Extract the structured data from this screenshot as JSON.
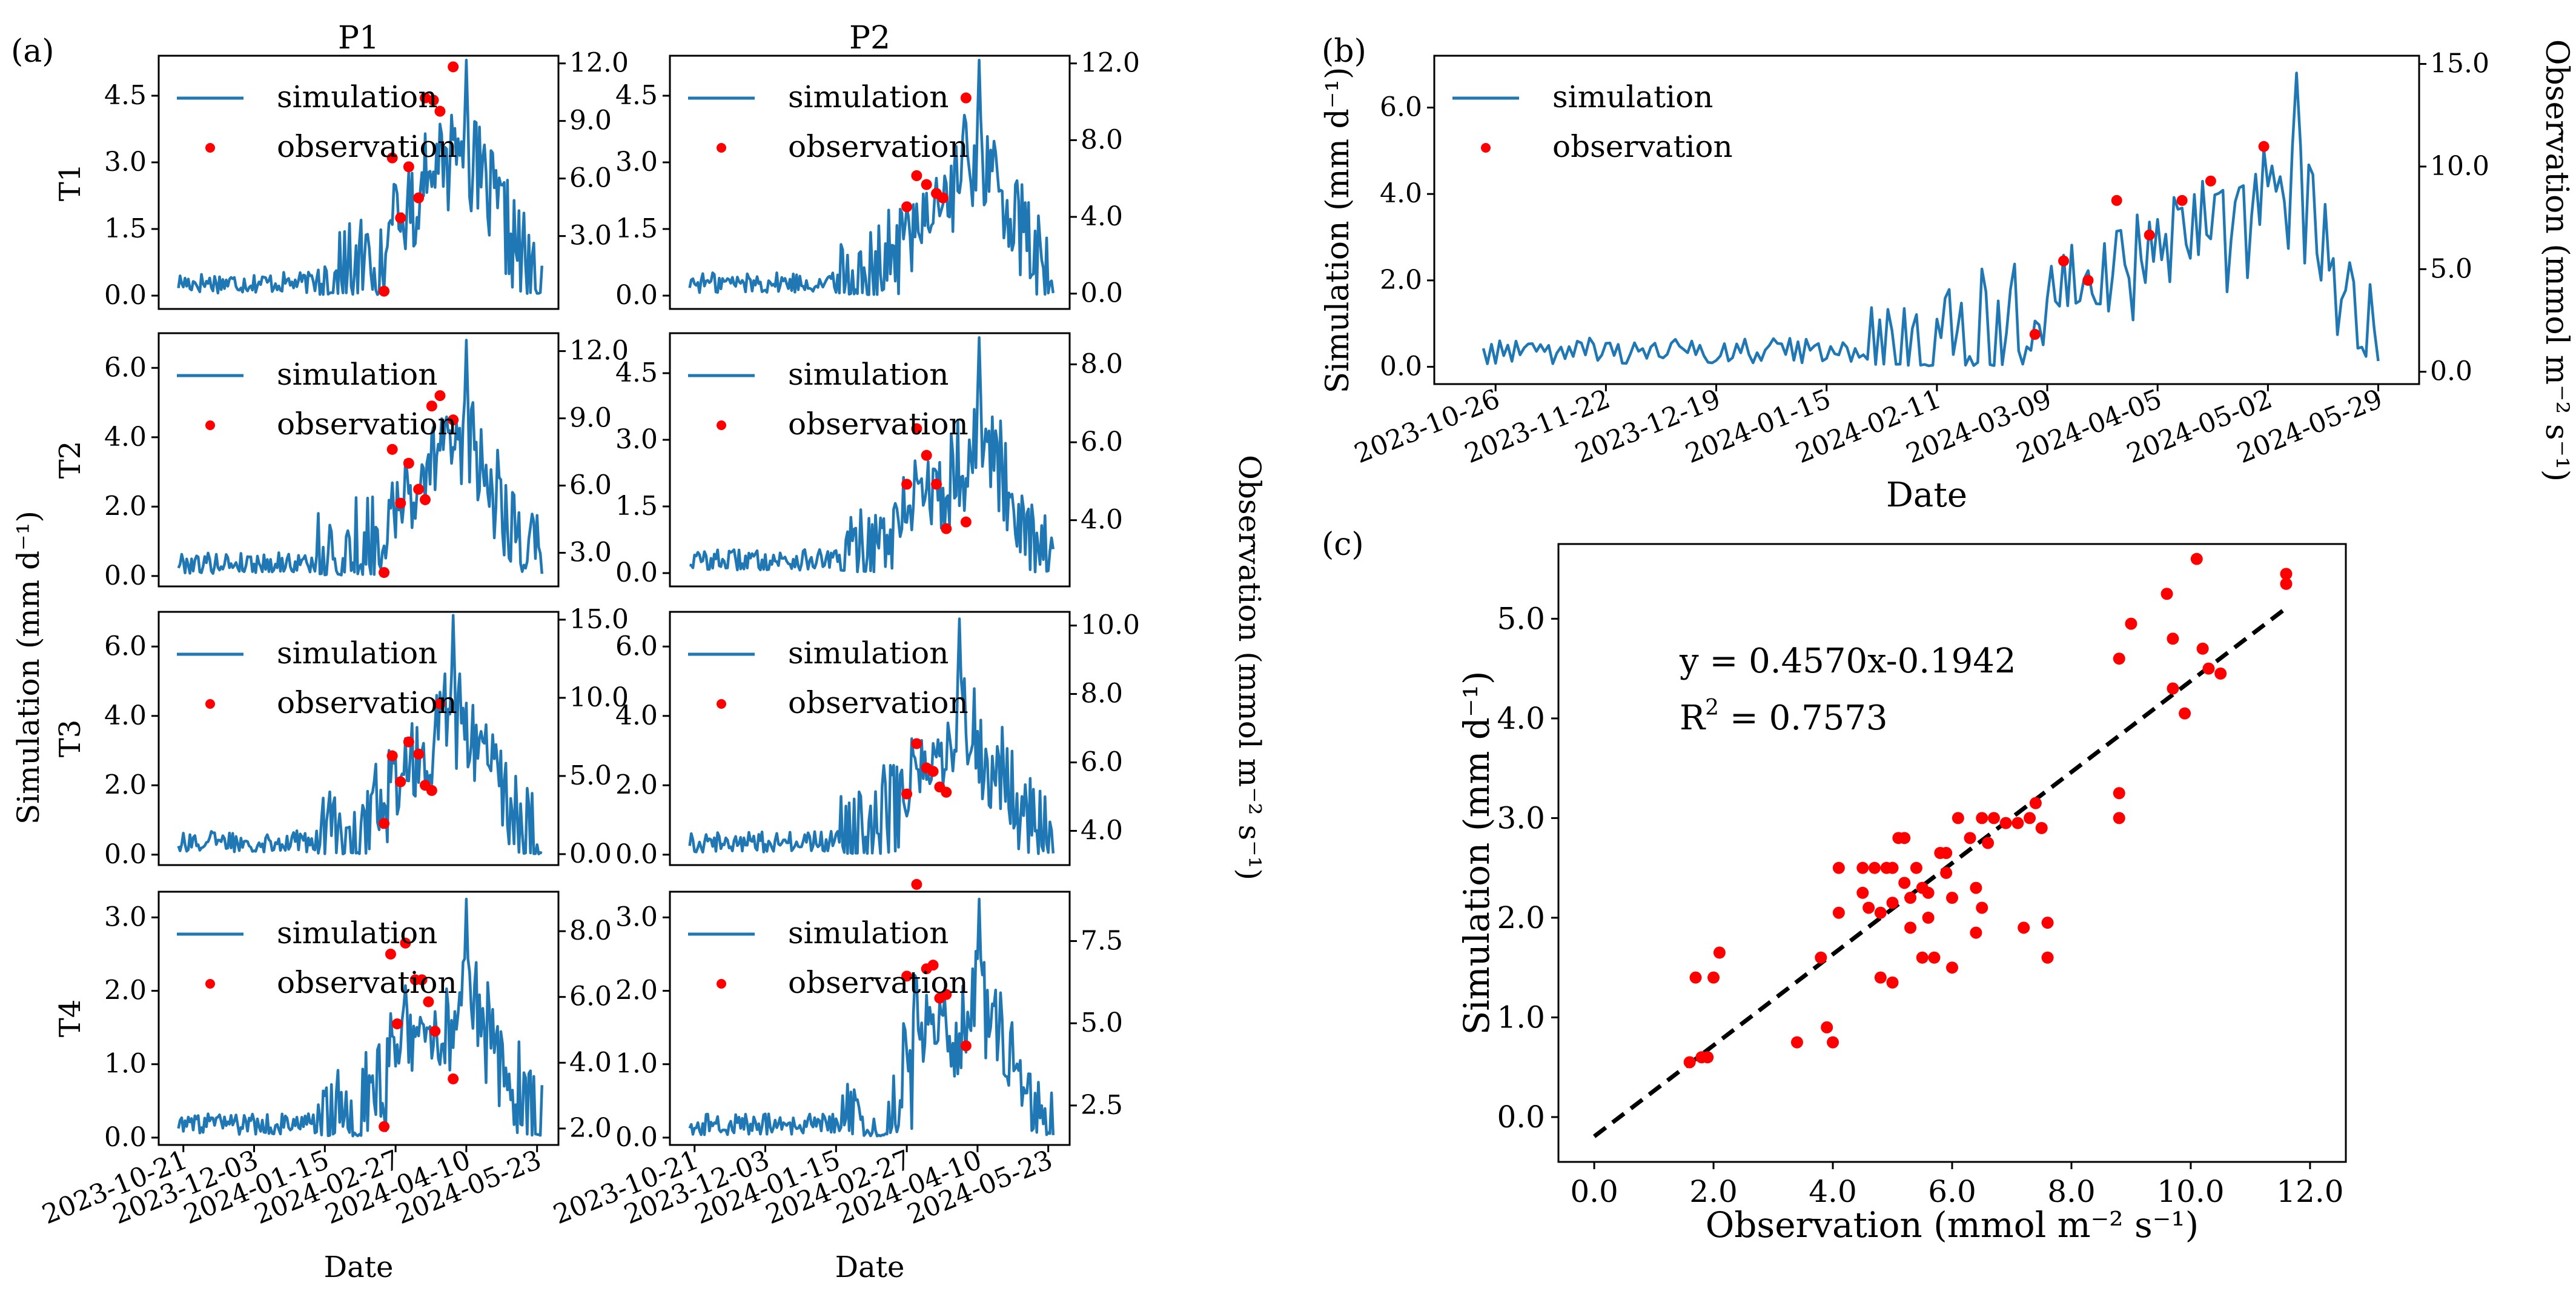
{
  "colors": {
    "simulation": "#1f77b4",
    "observation": "#ff0000",
    "fit_line": "#000000"
  },
  "chart_data": [
    {
      "id": "a",
      "type": "line",
      "panel_label": "(a)",
      "column_titles": [
        "P1",
        "P2"
      ],
      "row_labels": [
        "T1",
        "T2",
        "T3",
        "T4"
      ],
      "xlabel": "Date",
      "ylabel_left": "Simulation (mm d⁻¹)",
      "ylabel_right": "Observation (mmol m⁻² s⁻¹)",
      "x_ticks": [
        "2023-10-21",
        "2023-12-03",
        "2024-01-15",
        "2024-02-27",
        "2024-04-10",
        "2024-05-23"
      ],
      "x_range": [
        "2023-10-06",
        "2024-06-05"
      ],
      "legend": [
        "simulation",
        "observation"
      ],
      "subplots": [
        {
          "row": "T1",
          "col": "P1",
          "y_left_ticks": [
            "0.0",
            "1.5",
            "3.0",
            "4.5"
          ],
          "y_left_range": [
            -0.3,
            5.4
          ],
          "y_right_ticks": [
            "3.0",
            "6.0",
            "9.0",
            "12.0"
          ],
          "y_right_range": [
            -0.8,
            12.4
          ],
          "sim_peak": 5.3,
          "observation": [
            [
              "2024-02-20",
              0.1
            ],
            [
              "2024-02-25",
              3.1
            ],
            [
              "2024-03-01",
              1.75
            ],
            [
              "2024-03-06",
              2.9
            ],
            [
              "2024-03-12",
              2.2
            ],
            [
              "2024-03-16",
              4.45
            ],
            [
              "2024-03-21",
              4.4
            ],
            [
              "2024-03-25",
              4.15
            ],
            [
              "2024-04-02",
              5.15
            ]
          ]
        },
        {
          "row": "T1",
          "col": "P2",
          "y_left_ticks": [
            "0.0",
            "1.5",
            "3.0",
            "4.5"
          ],
          "y_left_range": [
            -0.3,
            5.4
          ],
          "y_right_ticks": [
            "0.0",
            "4.0",
            "8.0",
            "12.0"
          ],
          "y_right_range": [
            -0.8,
            12.4
          ],
          "sim_peak": 5.3,
          "observation": [
            [
              "2024-02-27",
              2.0
            ],
            [
              "2024-03-04",
              2.7
            ],
            [
              "2024-03-10",
              2.5
            ],
            [
              "2024-03-16",
              2.3
            ],
            [
              "2024-03-20",
              2.2
            ],
            [
              "2024-04-03",
              4.45
            ]
          ]
        },
        {
          "row": "T2",
          "col": "P1",
          "y_left_ticks": [
            "0.0",
            "2.0",
            "4.0",
            "6.0"
          ],
          "y_left_range": [
            -0.3,
            7.0
          ],
          "y_right_ticks": [
            "3.0",
            "6.0",
            "9.0",
            "12.0"
          ],
          "y_right_range": [
            1.5,
            12.8
          ],
          "sim_peak": 6.8,
          "observation": [
            [
              "2024-02-20",
              0.1
            ],
            [
              "2024-02-25",
              3.65
            ],
            [
              "2024-03-01",
              2.1
            ],
            [
              "2024-03-06",
              3.25
            ],
            [
              "2024-03-12",
              2.5
            ],
            [
              "2024-03-16",
              2.2
            ],
            [
              "2024-03-20",
              4.9
            ],
            [
              "2024-03-25",
              5.2
            ],
            [
              "2024-04-02",
              4.5
            ]
          ]
        },
        {
          "row": "T2",
          "col": "P2",
          "y_left_ticks": [
            "0.0",
            "1.5",
            "3.0",
            "4.5"
          ],
          "y_left_range": [
            -0.3,
            5.4
          ],
          "y_right_ticks": [
            "4.0",
            "6.0",
            "8.0"
          ],
          "y_right_range": [
            2.3,
            8.8
          ],
          "sim_peak": 5.3,
          "observation": [
            [
              "2024-02-27",
              2.0
            ],
            [
              "2024-03-04",
              3.25
            ],
            [
              "2024-03-10",
              2.65
            ],
            [
              "2024-03-16",
              2.0
            ],
            [
              "2024-03-22",
              1.0
            ],
            [
              "2024-04-03",
              1.15
            ]
          ]
        },
        {
          "row": "T3",
          "col": "P1",
          "y_left_ticks": [
            "0.0",
            "2.0",
            "4.0",
            "6.0"
          ],
          "y_left_range": [
            -0.3,
            7.0
          ],
          "y_right_ticks": [
            "0.0",
            "5.0",
            "10.0",
            "15.0"
          ],
          "y_right_range": [
            -0.7,
            15.5
          ],
          "sim_peak": 6.9,
          "observation": [
            [
              "2024-02-20",
              0.9
            ],
            [
              "2024-02-25",
              2.85
            ],
            [
              "2024-03-01",
              2.1
            ],
            [
              "2024-03-06",
              3.25
            ],
            [
              "2024-03-12",
              2.9
            ],
            [
              "2024-03-16",
              2.0
            ],
            [
              "2024-03-20",
              1.85
            ],
            [
              "2024-03-25",
              4.35
            ]
          ]
        },
        {
          "row": "T3",
          "col": "P2",
          "y_left_ticks": [
            "0.0",
            "2.0",
            "4.0",
            "6.0"
          ],
          "y_left_range": [
            -0.3,
            7.0
          ],
          "y_right_ticks": [
            "4.0",
            "6.0",
            "8.0",
            "10.0"
          ],
          "y_right_range": [
            3.0,
            10.4
          ],
          "sim_peak": 6.8,
          "observation": [
            [
              "2024-02-27",
              1.75
            ],
            [
              "2024-03-04",
              3.2
            ],
            [
              "2024-03-10",
              2.5
            ],
            [
              "2024-03-14",
              2.4
            ],
            [
              "2024-03-18",
              1.95
            ],
            [
              "2024-03-22",
              1.8
            ]
          ]
        },
        {
          "row": "T4",
          "col": "P1",
          "y_left_ticks": [
            "0.0",
            "1.0",
            "2.0",
            "3.0"
          ],
          "y_left_range": [
            -0.1,
            3.35
          ],
          "y_right_ticks": [
            "2.0",
            "4.0",
            "6.0",
            "8.0"
          ],
          "y_right_range": [
            1.5,
            9.2
          ],
          "sim_peak": 3.25,
          "observation": [
            [
              "2024-02-20",
              0.15
            ],
            [
              "2024-02-24",
              2.5
            ],
            [
              "2024-02-28",
              1.55
            ],
            [
              "2024-03-04",
              2.65
            ],
            [
              "2024-03-10",
              2.15
            ],
            [
              "2024-03-14",
              2.15
            ],
            [
              "2024-03-18",
              1.85
            ],
            [
              "2024-03-22",
              1.45
            ],
            [
              "2024-04-02",
              0.8
            ]
          ]
        },
        {
          "row": "T4",
          "col": "P2",
          "y_left_ticks": [
            "0.0",
            "1.0",
            "2.0",
            "3.0"
          ],
          "y_left_range": [
            -0.1,
            3.35
          ],
          "y_right_ticks": [
            "2.5",
            "5.0",
            "7.5"
          ],
          "y_right_range": [
            1.3,
            9.0
          ],
          "sim_peak": 3.25,
          "observation": [
            [
              "2024-02-27",
              2.2
            ],
            [
              "2024-03-04",
              3.45
            ],
            [
              "2024-03-10",
              2.3
            ],
            [
              "2024-03-14",
              2.35
            ],
            [
              "2024-03-18",
              1.9
            ],
            [
              "2024-03-22",
              1.95
            ],
            [
              "2024-04-03",
              1.25
            ]
          ]
        }
      ]
    },
    {
      "id": "b",
      "type": "line",
      "panel_label": "(b)",
      "xlabel": "Date",
      "ylabel_left": "Simulation (mm d⁻¹)",
      "ylabel_right": "Observation (mmol m⁻² s⁻¹)",
      "x_ticks": [
        "2023-10-26",
        "2023-11-22",
        "2023-12-19",
        "2024-01-15",
        "2024-02-11",
        "2024-03-09",
        "2024-04-05",
        "2024-05-02",
        "2024-05-29"
      ],
      "x_range": [
        "2023-10-11",
        "2024-06-08"
      ],
      "y_left_ticks": [
        "0.0",
        "2.0",
        "4.0",
        "6.0"
      ],
      "y_left_range": [
        -0.4,
        7.2
      ],
      "y_right_ticks": [
        "0.0",
        "5.0",
        "10.0",
        "15.0"
      ],
      "y_right_range": [
        -0.6,
        15.4
      ],
      "legend": [
        "simulation",
        "observation"
      ],
      "sim_peak": 6.8,
      "observation": [
        [
          "2024-03-06",
          0.75
        ],
        [
          "2024-03-13",
          2.45
        ],
        [
          "2024-03-19",
          2.0
        ],
        [
          "2024-03-26",
          3.85
        ],
        [
          "2024-04-03",
          3.05
        ],
        [
          "2024-04-11",
          3.85
        ],
        [
          "2024-04-18",
          4.3
        ],
        [
          "2024-05-01",
          5.1
        ]
      ]
    },
    {
      "id": "c",
      "type": "scatter",
      "panel_label": "(c)",
      "xlabel": "Observation (mmol m⁻² s⁻¹)",
      "ylabel": "Simulation (mm d⁻¹)",
      "x_ticks": [
        "0.0",
        "2.0",
        "4.0",
        "6.0",
        "8.0",
        "10.0",
        "12.0"
      ],
      "xlim": [
        -0.6,
        12.6
      ],
      "y_ticks": [
        "0.0",
        "1.0",
        "2.0",
        "3.0",
        "4.0",
        "5.0"
      ],
      "ylim": [
        -0.45,
        5.75
      ],
      "equation": "y = 0.4570x-0.1942",
      "r2_label": "R",
      "r2_exp": "2",
      "r2_value": "= 0.7573",
      "fit": {
        "slope": 0.457,
        "intercept": -0.1942,
        "x_range": [
          0.0,
          11.6
        ]
      },
      "points": [
        [
          1.6,
          0.55
        ],
        [
          1.8,
          0.6
        ],
        [
          1.9,
          0.6
        ],
        [
          1.7,
          1.4
        ],
        [
          2.0,
          1.4
        ],
        [
          2.1,
          1.65
        ],
        [
          3.4,
          0.75
        ],
        [
          3.8,
          1.6
        ],
        [
          3.9,
          0.9
        ],
        [
          4.0,
          0.75
        ],
        [
          4.1,
          2.05
        ],
        [
          4.1,
          2.5
        ],
        [
          4.5,
          2.25
        ],
        [
          4.5,
          2.5
        ],
        [
          4.6,
          2.1
        ],
        [
          4.7,
          2.5
        ],
        [
          4.8,
          1.4
        ],
        [
          4.8,
          2.05
        ],
        [
          4.9,
          2.5
        ],
        [
          5.0,
          1.35
        ],
        [
          5.0,
          2.5
        ],
        [
          5.0,
          2.15
        ],
        [
          5.1,
          2.8
        ],
        [
          5.2,
          2.35
        ],
        [
          5.2,
          2.8
        ],
        [
          5.3,
          2.2
        ],
        [
          5.3,
          1.9
        ],
        [
          5.4,
          2.5
        ],
        [
          5.5,
          2.3
        ],
        [
          5.5,
          1.6
        ],
        [
          5.6,
          2.25
        ],
        [
          5.6,
          2.0
        ],
        [
          5.7,
          1.6
        ],
        [
          5.8,
          2.65
        ],
        [
          5.9,
          2.65
        ],
        [
          5.9,
          2.45
        ],
        [
          6.0,
          1.5
        ],
        [
          6.0,
          2.2
        ],
        [
          6.1,
          3.0
        ],
        [
          6.3,
          2.8
        ],
        [
          6.4,
          2.3
        ],
        [
          6.4,
          1.85
        ],
        [
          6.5,
          2.1
        ],
        [
          6.5,
          3.0
        ],
        [
          6.6,
          2.75
        ],
        [
          6.7,
          3.0
        ],
        [
          6.9,
          2.95
        ],
        [
          7.1,
          2.95
        ],
        [
          7.2,
          1.9
        ],
        [
          7.3,
          3.0
        ],
        [
          7.4,
          3.15
        ],
        [
          7.5,
          2.9
        ],
        [
          7.6,
          1.95
        ],
        [
          7.6,
          1.6
        ],
        [
          8.8,
          3.25
        ],
        [
          8.8,
          4.6
        ],
        [
          8.8,
          3.0
        ],
        [
          9.0,
          4.95
        ],
        [
          9.6,
          5.25
        ],
        [
          9.7,
          4.3
        ],
        [
          9.7,
          4.8
        ],
        [
          9.9,
          4.05
        ],
        [
          10.1,
          5.6
        ],
        [
          10.2,
          4.7
        ],
        [
          10.3,
          4.5
        ],
        [
          10.5,
          4.45
        ],
        [
          11.6,
          5.45
        ],
        [
          11.6,
          5.35
        ]
      ]
    }
  ]
}
